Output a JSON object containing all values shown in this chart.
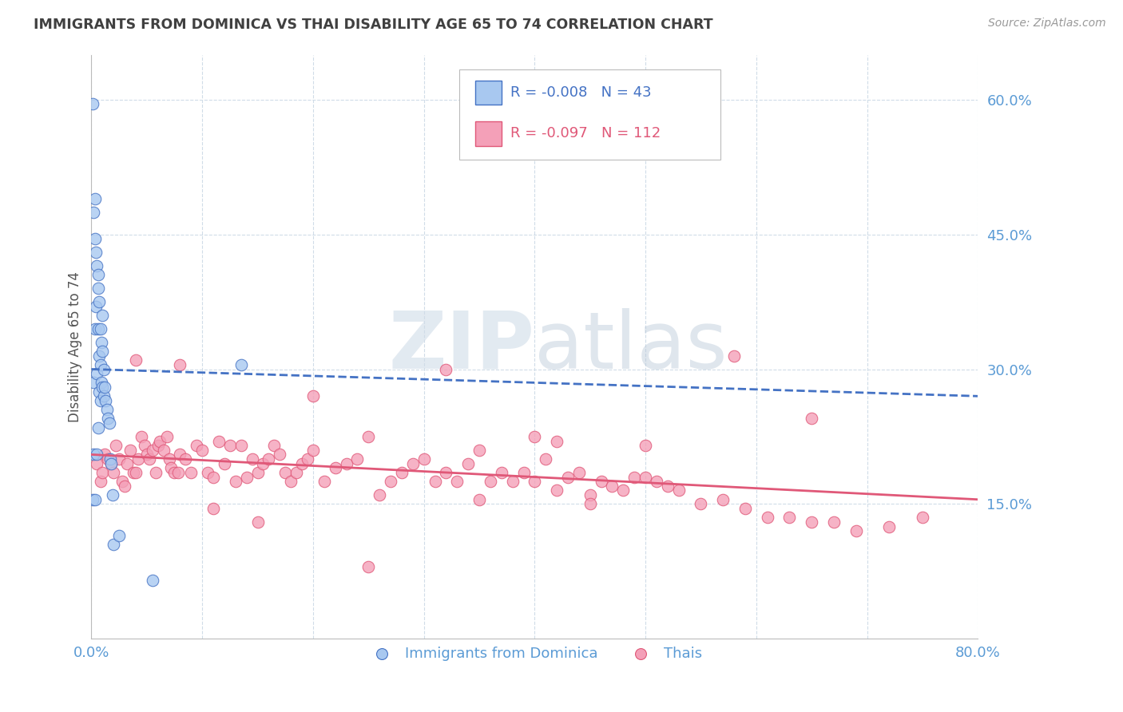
{
  "title": "IMMIGRANTS FROM DOMINICA VS THAI DISABILITY AGE 65 TO 74 CORRELATION CHART",
  "source": "Source: ZipAtlas.com",
  "ylabel": "Disability Age 65 to 74",
  "xmin": 0.0,
  "xmax": 0.8,
  "ymin": 0.0,
  "ymax": 0.65,
  "yticks": [
    0.15,
    0.3,
    0.45,
    0.6
  ],
  "ytick_labels": [
    "15.0%",
    "30.0%",
    "45.0%",
    "60.0%"
  ],
  "xticks": [
    0.0,
    0.1,
    0.2,
    0.3,
    0.4,
    0.5,
    0.6,
    0.7,
    0.8
  ],
  "xtick_labels": [
    "0.0%",
    "",
    "",
    "",
    "",
    "",
    "",
    "",
    "80.0%"
  ],
  "legend_r_dominica": "-0.008",
  "legend_n_dominica": "43",
  "legend_r_thai": "-0.097",
  "legend_n_thai": "112",
  "color_dominica": "#a8c8f0",
  "color_thai": "#f4a0b8",
  "color_line_dominica": "#4472c4",
  "color_line_thai": "#e05878",
  "color_axis_labels": "#5b9bd5",
  "color_grid": "#d0dce8",
  "color_title": "#404040",
  "dominica_scatter_x": [
    0.001,
    0.001,
    0.002,
    0.002,
    0.002,
    0.003,
    0.003,
    0.003,
    0.004,
    0.004,
    0.005,
    0.005,
    0.005,
    0.006,
    0.006,
    0.006,
    0.007,
    0.007,
    0.007,
    0.008,
    0.008,
    0.008,
    0.009,
    0.009,
    0.01,
    0.01,
    0.011,
    0.011,
    0.012,
    0.013,
    0.014,
    0.015,
    0.016,
    0.017,
    0.018,
    0.019,
    0.02,
    0.025,
    0.003,
    0.006,
    0.01,
    0.055,
    0.135
  ],
  "dominica_scatter_y": [
    0.595,
    0.155,
    0.475,
    0.285,
    0.205,
    0.445,
    0.345,
    0.155,
    0.43,
    0.37,
    0.415,
    0.295,
    0.205,
    0.39,
    0.345,
    0.235,
    0.375,
    0.315,
    0.275,
    0.345,
    0.305,
    0.265,
    0.33,
    0.285,
    0.32,
    0.28,
    0.3,
    0.27,
    0.28,
    0.265,
    0.255,
    0.245,
    0.24,
    0.2,
    0.195,
    0.16,
    0.105,
    0.115,
    0.49,
    0.405,
    0.36,
    0.065,
    0.305
  ],
  "thai_scatter_x": [
    0.005,
    0.008,
    0.01,
    0.012,
    0.015,
    0.018,
    0.02,
    0.022,
    0.025,
    0.028,
    0.03,
    0.032,
    0.035,
    0.038,
    0.04,
    0.042,
    0.045,
    0.048,
    0.05,
    0.052,
    0.055,
    0.058,
    0.06,
    0.062,
    0.065,
    0.068,
    0.07,
    0.072,
    0.075,
    0.078,
    0.08,
    0.085,
    0.09,
    0.095,
    0.1,
    0.105,
    0.11,
    0.115,
    0.12,
    0.125,
    0.13,
    0.135,
    0.14,
    0.145,
    0.15,
    0.155,
    0.16,
    0.165,
    0.17,
    0.175,
    0.18,
    0.185,
    0.19,
    0.195,
    0.2,
    0.21,
    0.22,
    0.23,
    0.24,
    0.25,
    0.26,
    0.27,
    0.28,
    0.29,
    0.3,
    0.31,
    0.32,
    0.33,
    0.34,
    0.35,
    0.36,
    0.37,
    0.38,
    0.39,
    0.4,
    0.41,
    0.42,
    0.43,
    0.44,
    0.45,
    0.46,
    0.47,
    0.48,
    0.49,
    0.5,
    0.51,
    0.52,
    0.53,
    0.55,
    0.57,
    0.59,
    0.61,
    0.63,
    0.65,
    0.67,
    0.69,
    0.72,
    0.75,
    0.04,
    0.08,
    0.15,
    0.25,
    0.35,
    0.45,
    0.5,
    0.58,
    0.65,
    0.42,
    0.32,
    0.2,
    0.11,
    0.4
  ],
  "thai_scatter_y": [
    0.195,
    0.175,
    0.185,
    0.205,
    0.2,
    0.195,
    0.185,
    0.215,
    0.2,
    0.175,
    0.17,
    0.195,
    0.21,
    0.185,
    0.185,
    0.2,
    0.225,
    0.215,
    0.205,
    0.2,
    0.21,
    0.185,
    0.215,
    0.22,
    0.21,
    0.225,
    0.2,
    0.19,
    0.185,
    0.185,
    0.205,
    0.2,
    0.185,
    0.215,
    0.21,
    0.185,
    0.18,
    0.22,
    0.195,
    0.215,
    0.175,
    0.215,
    0.18,
    0.2,
    0.185,
    0.195,
    0.2,
    0.215,
    0.205,
    0.185,
    0.175,
    0.185,
    0.195,
    0.2,
    0.21,
    0.175,
    0.19,
    0.195,
    0.2,
    0.225,
    0.16,
    0.175,
    0.185,
    0.195,
    0.2,
    0.175,
    0.185,
    0.175,
    0.195,
    0.21,
    0.175,
    0.185,
    0.175,
    0.185,
    0.175,
    0.2,
    0.165,
    0.18,
    0.185,
    0.16,
    0.175,
    0.17,
    0.165,
    0.18,
    0.18,
    0.175,
    0.17,
    0.165,
    0.15,
    0.155,
    0.145,
    0.135,
    0.135,
    0.13,
    0.13,
    0.12,
    0.125,
    0.135,
    0.31,
    0.305,
    0.13,
    0.08,
    0.155,
    0.15,
    0.215,
    0.315,
    0.245,
    0.22,
    0.3,
    0.27,
    0.145,
    0.225
  ],
  "trend_dom_x0": 0.0,
  "trend_dom_x1": 0.8,
  "trend_dom_y0": 0.3,
  "trend_dom_y1": 0.27,
  "trend_thai_x0": 0.0,
  "trend_thai_x1": 0.8,
  "trend_thai_y0": 0.205,
  "trend_thai_y1": 0.155
}
